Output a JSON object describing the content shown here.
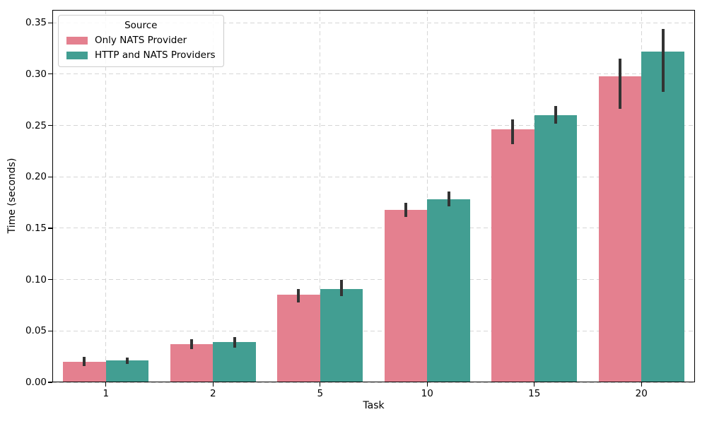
{
  "chart_data": {
    "type": "bar",
    "title": "",
    "xlabel": "Task",
    "ylabel": "Time (seconds)",
    "categories": [
      "1",
      "2",
      "5",
      "10",
      "15",
      "20"
    ],
    "series": [
      {
        "name": "Only NATS Provider",
        "color": "#e4808f",
        "values": [
          0.02,
          0.037,
          0.085,
          0.168,
          0.246,
          0.298
        ],
        "err_low": [
          0.016,
          0.032,
          0.078,
          0.161,
          0.232,
          0.266
        ],
        "err_high": [
          0.025,
          0.042,
          0.091,
          0.175,
          0.256,
          0.315
        ]
      },
      {
        "name": "HTTP and NATS Providers",
        "color": "#429e92",
        "values": [
          0.021,
          0.039,
          0.091,
          0.178,
          0.26,
          0.322
        ],
        "err_low": [
          0.018,
          0.034,
          0.084,
          0.171,
          0.252,
          0.283
        ],
        "err_high": [
          0.024,
          0.044,
          0.1,
          0.186,
          0.269,
          0.344
        ]
      }
    ],
    "legend": {
      "title": "Source",
      "position": "upper-left"
    },
    "ylim": [
      0,
      0.3625
    ],
    "yticks": [
      0,
      0.05,
      0.1,
      0.15,
      0.2,
      0.25,
      0.3,
      0.35
    ],
    "grid": {
      "show": true,
      "style": "dashed",
      "color": "#d6d6d6"
    },
    "error_bar_color": "#333333",
    "bar_group_width": 0.8
  }
}
